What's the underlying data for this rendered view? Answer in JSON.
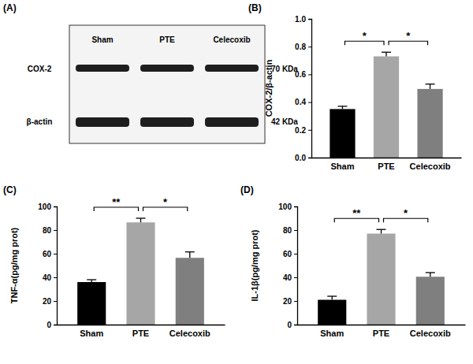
{
  "blot": {
    "title": "(A)",
    "lanes": [
      "Sham",
      "PTE",
      "Celecoxib"
    ],
    "rows": [
      {
        "name": "COX-2",
        "size": "70 KDa"
      },
      {
        "name": "β-actin",
        "size": "42 KDa"
      }
    ]
  },
  "chart_data": [
    {
      "type": "bar",
      "title": "(B)",
      "y_label": "COX-2/β-actin",
      "categories": [
        "Sham",
        "PTE",
        "Celecoxib"
      ],
      "values": [
        0.35,
        0.73,
        0.495
      ],
      "errors": [
        0.02,
        0.03,
        0.035
      ],
      "colors": [
        "#000000",
        "#a6a6a6",
        "#7f7f7f"
      ],
      "ylim": [
        0,
        1
      ],
      "yticks": [
        {
          "value": 0,
          "label": "0.0"
        },
        0.2,
        0.4,
        0.6,
        0.8,
        {
          "value": 1,
          "label": "1.0"
        }
      ],
      "grid": false,
      "annotations": [
        {
          "between": [
            "Sham",
            "PTE"
          ],
          "text": "*"
        },
        {
          "between": [
            "PTE",
            "Celecoxib"
          ],
          "text": "*"
        }
      ]
    },
    {
      "type": "bar",
      "title": "(C)",
      "y_label": "TNF-α(pg/mg prot)",
      "categories": [
        "Sham",
        "PTE",
        "Celecoxib"
      ],
      "values": [
        36,
        86.5,
        56.5
      ],
      "errors": [
        2,
        3.5,
        5
      ],
      "colors": [
        "#000000",
        "#a6a6a6",
        "#7f7f7f"
      ],
      "ylim": [
        0,
        100
      ],
      "yticks": [
        0,
        20,
        40,
        60,
        80,
        100
      ],
      "grid": false,
      "annotations": [
        {
          "between": [
            "Sham",
            "PTE"
          ],
          "text": "**"
        },
        {
          "between": [
            "PTE",
            "Celecoxib"
          ],
          "text": "*"
        }
      ]
    },
    {
      "type": "bar",
      "title": "(D)",
      "y_label": "IL-1β(pg/mg prot)",
      "categories": [
        "Sham",
        "PTE",
        "Celecoxib"
      ],
      "values": [
        21,
        77,
        40.5
      ],
      "errors": [
        3,
        3.5,
        3.5
      ],
      "colors": [
        "#000000",
        "#a6a6a6",
        "#7f7f7f"
      ],
      "ylim": [
        0,
        100
      ],
      "yticks": [
        0,
        20,
        40,
        60,
        80,
        100
      ],
      "grid": false,
      "annotations": [
        {
          "between": [
            "Sham",
            "PTE"
          ],
          "text": "**"
        },
        {
          "between": [
            "PTE",
            "Celecoxib"
          ],
          "text": "*"
        }
      ]
    }
  ]
}
